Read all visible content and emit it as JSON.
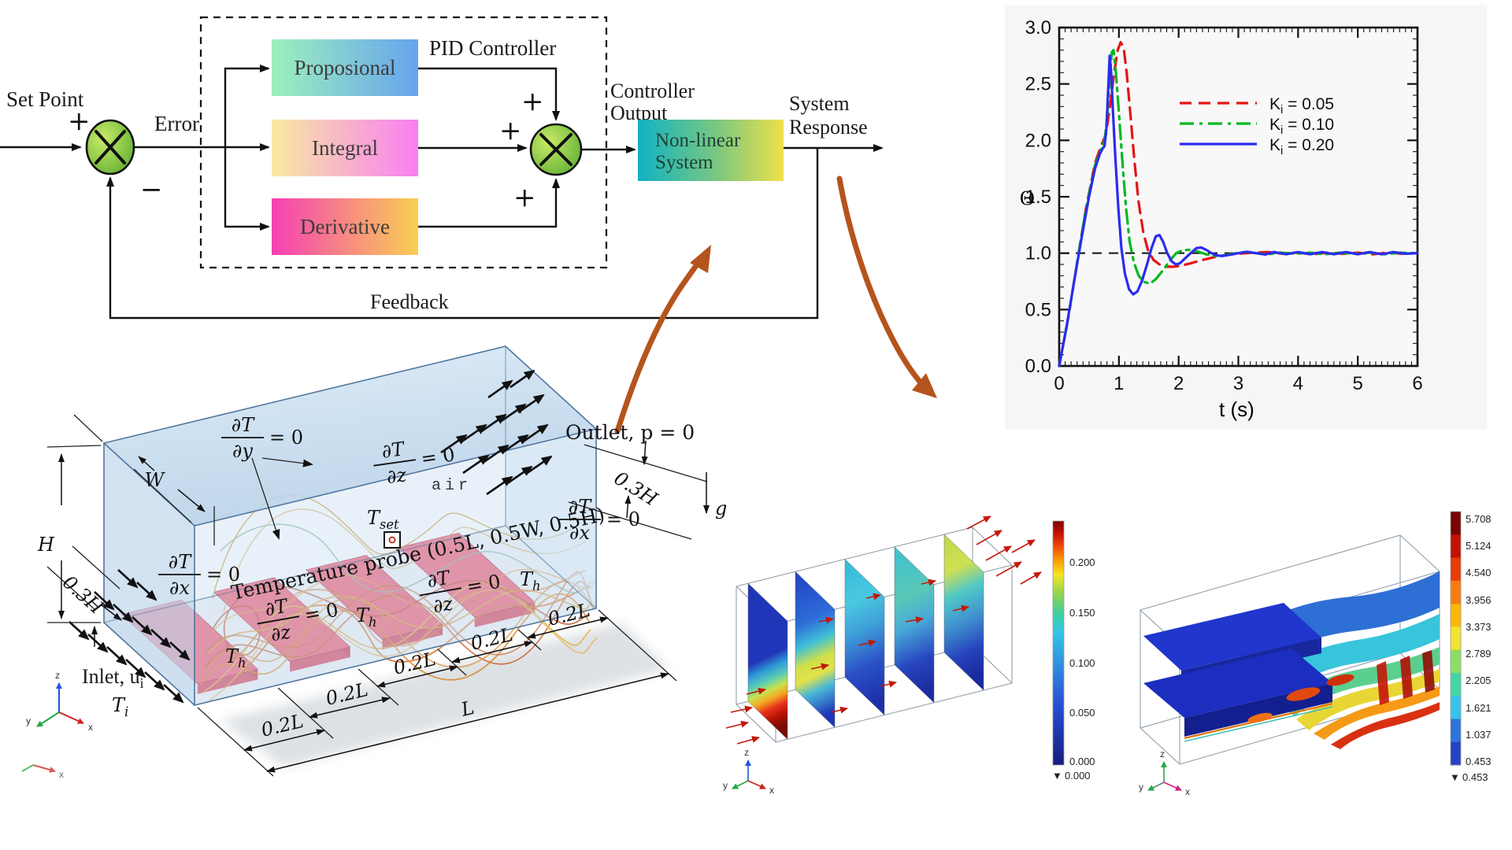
{
  "pid": {
    "set_point": "Set Point",
    "error": "Error",
    "plus": "+",
    "minus": "−",
    "controller_title": "PID Controller",
    "blocks": {
      "proportional": "Proposional",
      "integral": "Integral",
      "derivative": "Derivative",
      "plant_line1": "Non-linear",
      "plant_line2": "System"
    },
    "controller_output_line1": "Controller",
    "controller_output_line2": "Output",
    "system_response_line1": "System",
    "system_response_line2": "Response",
    "feedback": "Feedback",
    "colors": {
      "junction_light": "#c8ea66",
      "junction_dark": "#5fae34",
      "prop_left": "#9df0bd",
      "prop_right": "#66a4ee",
      "int_left": "#f8eaa2",
      "int_right": "#f97ef2",
      "der_left": "#f540b4",
      "der_right": "#f9cf52",
      "plant_left": "#10b2c4",
      "plant_mid": "#7cc87e",
      "plant_right": "#efe04a",
      "annotation_arrow": "#b5541c"
    }
  },
  "chart_data": {
    "type": "line",
    "title": "",
    "xlabel": "t (s)",
    "ylabel": "Θ",
    "xlim": [
      0,
      6
    ],
    "ylim": [
      0,
      3
    ],
    "x_ticks": [
      "0",
      "1",
      "2",
      "3",
      "4",
      "5",
      "6"
    ],
    "y_ticks": [
      "0.0",
      "0.5",
      "1.0",
      "1.5",
      "2.0",
      "2.5",
      "3.0"
    ],
    "reference_line": 1.0,
    "grid": false,
    "legend_position": "upper right",
    "series": [
      {
        "name": "Ki = 0.05",
        "legend_main": "K",
        "legend_sub": "i",
        "legend_rest": " = 0.05",
        "color": "#e51414",
        "style": "dashed",
        "points": [
          [
            0,
            0
          ],
          [
            0.15,
            0.42
          ],
          [
            0.3,
            0.92
          ],
          [
            0.45,
            1.4
          ],
          [
            0.6,
            1.8
          ],
          [
            0.7,
            1.95
          ],
          [
            0.78,
            2.05
          ],
          [
            0.85,
            2.3
          ],
          [
            0.92,
            2.6
          ],
          [
            0.98,
            2.8
          ],
          [
            1.03,
            2.87
          ],
          [
            1.08,
            2.82
          ],
          [
            1.13,
            2.6
          ],
          [
            1.19,
            2.25
          ],
          [
            1.26,
            1.82
          ],
          [
            1.33,
            1.45
          ],
          [
            1.41,
            1.18
          ],
          [
            1.49,
            1.02
          ],
          [
            1.58,
            0.94
          ],
          [
            1.68,
            0.9
          ],
          [
            1.8,
            0.88
          ],
          [
            1.92,
            0.88
          ],
          [
            2.05,
            0.89
          ],
          [
            2.2,
            0.91
          ],
          [
            2.4,
            0.94
          ],
          [
            2.6,
            0.965
          ],
          [
            2.8,
            0.985
          ],
          [
            3.0,
            0.995
          ],
          [
            3.25,
            1.005
          ],
          [
            3.5,
            1.01
          ],
          [
            3.75,
            0.995
          ],
          [
            4.0,
            1.005
          ],
          [
            4.25,
            0.99
          ],
          [
            4.5,
            1.005
          ],
          [
            4.75,
            0.995
          ],
          [
            5.0,
            1.005
          ],
          [
            5.25,
            0.99
          ],
          [
            5.5,
            1.005
          ],
          [
            5.75,
            0.995
          ],
          [
            6,
            1.0
          ]
        ]
      },
      {
        "name": "Ki = 0.10",
        "legend_main": "K",
        "legend_sub": "i",
        "legend_rest": " = 0.10",
        "color": "#00b822",
        "style": "dashdot",
        "points": [
          [
            0,
            0
          ],
          [
            0.15,
            0.42
          ],
          [
            0.3,
            0.92
          ],
          [
            0.45,
            1.4
          ],
          [
            0.6,
            1.78
          ],
          [
            0.7,
            1.92
          ],
          [
            0.76,
            2.0
          ],
          [
            0.8,
            2.18
          ],
          [
            0.84,
            2.5
          ],
          [
            0.88,
            2.78
          ],
          [
            0.91,
            2.8
          ],
          [
            0.95,
            2.6
          ],
          [
            1.0,
            2.25
          ],
          [
            1.06,
            1.8
          ],
          [
            1.12,
            1.4
          ],
          [
            1.18,
            1.1
          ],
          [
            1.25,
            0.92
          ],
          [
            1.33,
            0.8
          ],
          [
            1.42,
            0.745
          ],
          [
            1.52,
            0.73
          ],
          [
            1.62,
            0.77
          ],
          [
            1.74,
            0.85
          ],
          [
            1.86,
            0.94
          ],
          [
            1.96,
            1.0
          ],
          [
            2.06,
            1.025
          ],
          [
            2.18,
            1.03
          ],
          [
            2.32,
            1.015
          ],
          [
            2.46,
            0.99
          ],
          [
            2.6,
            0.975
          ],
          [
            2.75,
            0.98
          ],
          [
            2.9,
            0.995
          ],
          [
            3.1,
            1.01
          ],
          [
            3.3,
            1.0
          ],
          [
            3.5,
            0.99
          ],
          [
            3.7,
            1.005
          ],
          [
            3.95,
            0.995
          ],
          [
            4.2,
            1.005
          ],
          [
            4.45,
            0.99
          ],
          [
            4.7,
            1.005
          ],
          [
            4.95,
            0.995
          ],
          [
            5.2,
            1.005
          ],
          [
            5.45,
            0.99
          ],
          [
            5.7,
            1.005
          ],
          [
            6,
            1.0
          ]
        ]
      },
      {
        "name": "Ki = 0.20",
        "legend_main": "K",
        "legend_sub": "i",
        "legend_rest": " = 0.20",
        "color": "#2b2bf0",
        "style": "solid",
        "points": [
          [
            0,
            0
          ],
          [
            0.12,
            0.34
          ],
          [
            0.25,
            0.75
          ],
          [
            0.38,
            1.15
          ],
          [
            0.5,
            1.5
          ],
          [
            0.6,
            1.75
          ],
          [
            0.68,
            1.88
          ],
          [
            0.73,
            1.93
          ],
          [
            0.76,
            1.95
          ],
          [
            0.79,
            2.1
          ],
          [
            0.82,
            2.45
          ],
          [
            0.845,
            2.75
          ],
          [
            0.87,
            2.6
          ],
          [
            0.9,
            2.25
          ],
          [
            0.94,
            1.85
          ],
          [
            0.99,
            1.4
          ],
          [
            1.04,
            1.05
          ],
          [
            1.1,
            0.82
          ],
          [
            1.17,
            0.68
          ],
          [
            1.24,
            0.635
          ],
          [
            1.31,
            0.66
          ],
          [
            1.39,
            0.76
          ],
          [
            1.47,
            0.9
          ],
          [
            1.55,
            1.05
          ],
          [
            1.62,
            1.15
          ],
          [
            1.68,
            1.16
          ],
          [
            1.74,
            1.1
          ],
          [
            1.81,
            1.0
          ],
          [
            1.88,
            0.93
          ],
          [
            1.95,
            0.9
          ],
          [
            2.02,
            0.91
          ],
          [
            2.1,
            0.95
          ],
          [
            2.2,
            1.0
          ],
          [
            2.3,
            1.045
          ],
          [
            2.38,
            1.05
          ],
          [
            2.46,
            1.03
          ],
          [
            2.55,
            1.0
          ],
          [
            2.64,
            0.98
          ],
          [
            2.73,
            0.975
          ],
          [
            2.85,
            0.985
          ],
          [
            3.0,
            1.0
          ],
          [
            3.15,
            1.012
          ],
          [
            3.3,
            1.0
          ],
          [
            3.45,
            0.988
          ],
          [
            3.6,
            1.01
          ],
          [
            3.8,
            0.99
          ],
          [
            4.0,
            1.01
          ],
          [
            4.2,
            0.99
          ],
          [
            4.4,
            1.01
          ],
          [
            4.6,
            0.99
          ],
          [
            4.8,
            1.01
          ],
          [
            5.0,
            0.99
          ],
          [
            5.2,
            1.01
          ],
          [
            5.4,
            0.99
          ],
          [
            5.6,
            1.01
          ],
          [
            5.8,
            0.995
          ],
          [
            6,
            1.0
          ]
        ]
      }
    ]
  },
  "cfd": {
    "bc": {
      "num": "∂T",
      "den_y": "∂y",
      "den_z": "∂z",
      "den_x": "∂x",
      "eq": "= 0"
    },
    "t_set_main": "T",
    "t_set_sub": "set",
    "probe_text": "Temperature probe (0.5L, 0.5W, 0.5H)",
    "air": "air",
    "outlet": "Outlet, p = 0",
    "th_main": "T",
    "th_sub": "h",
    "inlet_main": "Inlet, u",
    "inlet_sub": "i",
    "ti_main": "T",
    "ti_sub": "i",
    "dims": {
      "H": "H",
      "W": "W",
      "L": "L",
      "l02": "0.2L",
      "h03": "0.3H",
      "g": "g"
    },
    "triad": {
      "x": "x",
      "y": "y",
      "z": "z"
    }
  },
  "mid_plot": {
    "colorbar_labels": [
      "0.200",
      "0.150",
      "0.100",
      "0.050",
      "0.000"
    ],
    "colorbar_min_marker": "▼",
    "colorbar_min_value": "0.000",
    "arrow_color": "#c2190b",
    "triad": {
      "x": "x",
      "y": "y",
      "z": "z"
    }
  },
  "iso_plot": {
    "colorbar_labels": [
      "5.708",
      "5.124",
      "4.540",
      "3.956",
      "3.373",
      "2.789",
      "2.205",
      "1.621",
      "1.037",
      "0.453"
    ],
    "colorbar_colors": [
      "#7a0403",
      "#c41104",
      "#ea3b06",
      "#f97b11",
      "#fcb605",
      "#f2e330",
      "#8adf63",
      "#45d6a4",
      "#38c3e8",
      "#2d74dd",
      "#2443c6"
    ],
    "colorbar_min_marker": "▼",
    "colorbar_min_value": "0.453",
    "triad": {
      "x": "x",
      "y": "y",
      "z": "z"
    }
  }
}
